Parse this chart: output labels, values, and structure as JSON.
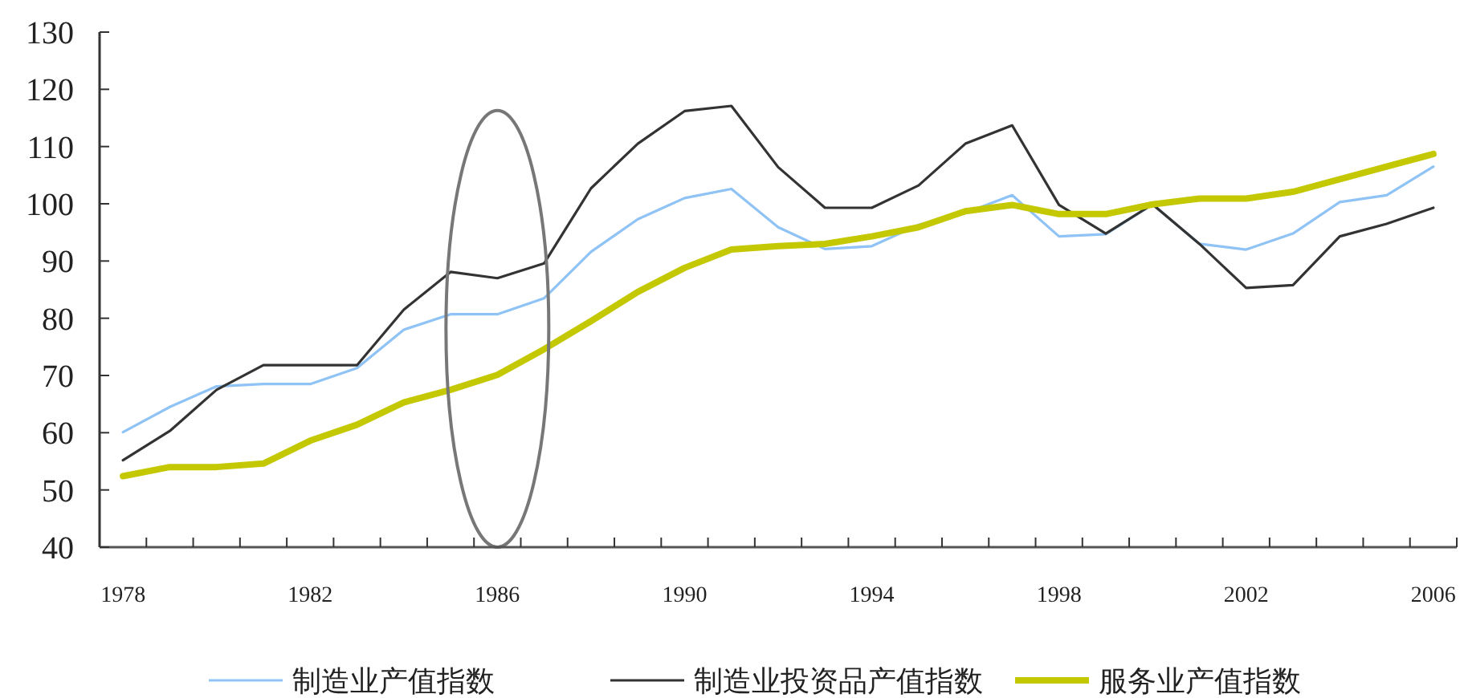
{
  "chart_data": {
    "type": "line",
    "categories": [
      "1978",
      null,
      null,
      null,
      "1982",
      null,
      null,
      null,
      "1986",
      null,
      null,
      null,
      "1990",
      null,
      null,
      null,
      "1994",
      null,
      null,
      null,
      "1998",
      null,
      null,
      null,
      "2002",
      null,
      null,
      null,
      "2006"
    ],
    "series": [
      {
        "name": "制造业产值指数",
        "color": "#8fc3f5",
        "values": [
          60.1,
          64.5,
          68.1,
          68.5,
          68.5,
          71.3,
          78,
          80.7,
          80.7,
          83.5,
          91.6,
          97.3,
          101,
          102.6,
          95.9,
          92.1,
          92.6,
          96.3,
          98.4,
          101.5,
          94.3,
          94.7,
          99.9,
          93,
          92,
          94.8,
          100.3,
          101.5,
          106.5
        ]
      },
      {
        "name": "制造业投资品产值指数",
        "color": "#333333",
        "values": [
          55.2,
          60.3,
          67.5,
          71.8,
          71.8,
          71.8,
          81.5,
          88.1,
          87,
          89.6,
          102.7,
          110.5,
          116.2,
          117.1,
          106.4,
          99.3,
          99.3,
          103.2,
          110.5,
          113.7,
          99.8,
          94.8,
          99.9,
          93,
          85.3,
          85.8,
          94.3,
          96.5,
          99.3
        ]
      },
      {
        "name": "服务业产值指数",
        "color": "#c3c800",
        "values": [
          52.4,
          54,
          54,
          54.6,
          58.6,
          61.4,
          65.3,
          67.5,
          70.1,
          74.6,
          79.5,
          84.6,
          88.8,
          92,
          92.6,
          93,
          94.3,
          95.9,
          98.7,
          99.8,
          98.2,
          98.2,
          99.9,
          100.9,
          100.9,
          102.1,
          104.3,
          106.5,
          108.7
        ]
      }
    ],
    "ylim": [
      40,
      130
    ],
    "yticks": [
      40,
      50,
      60,
      70,
      80,
      90,
      100,
      110,
      120,
      130
    ],
    "grid": false,
    "legend": "bottom",
    "marker": "none",
    "line_style": "solid"
  }
}
